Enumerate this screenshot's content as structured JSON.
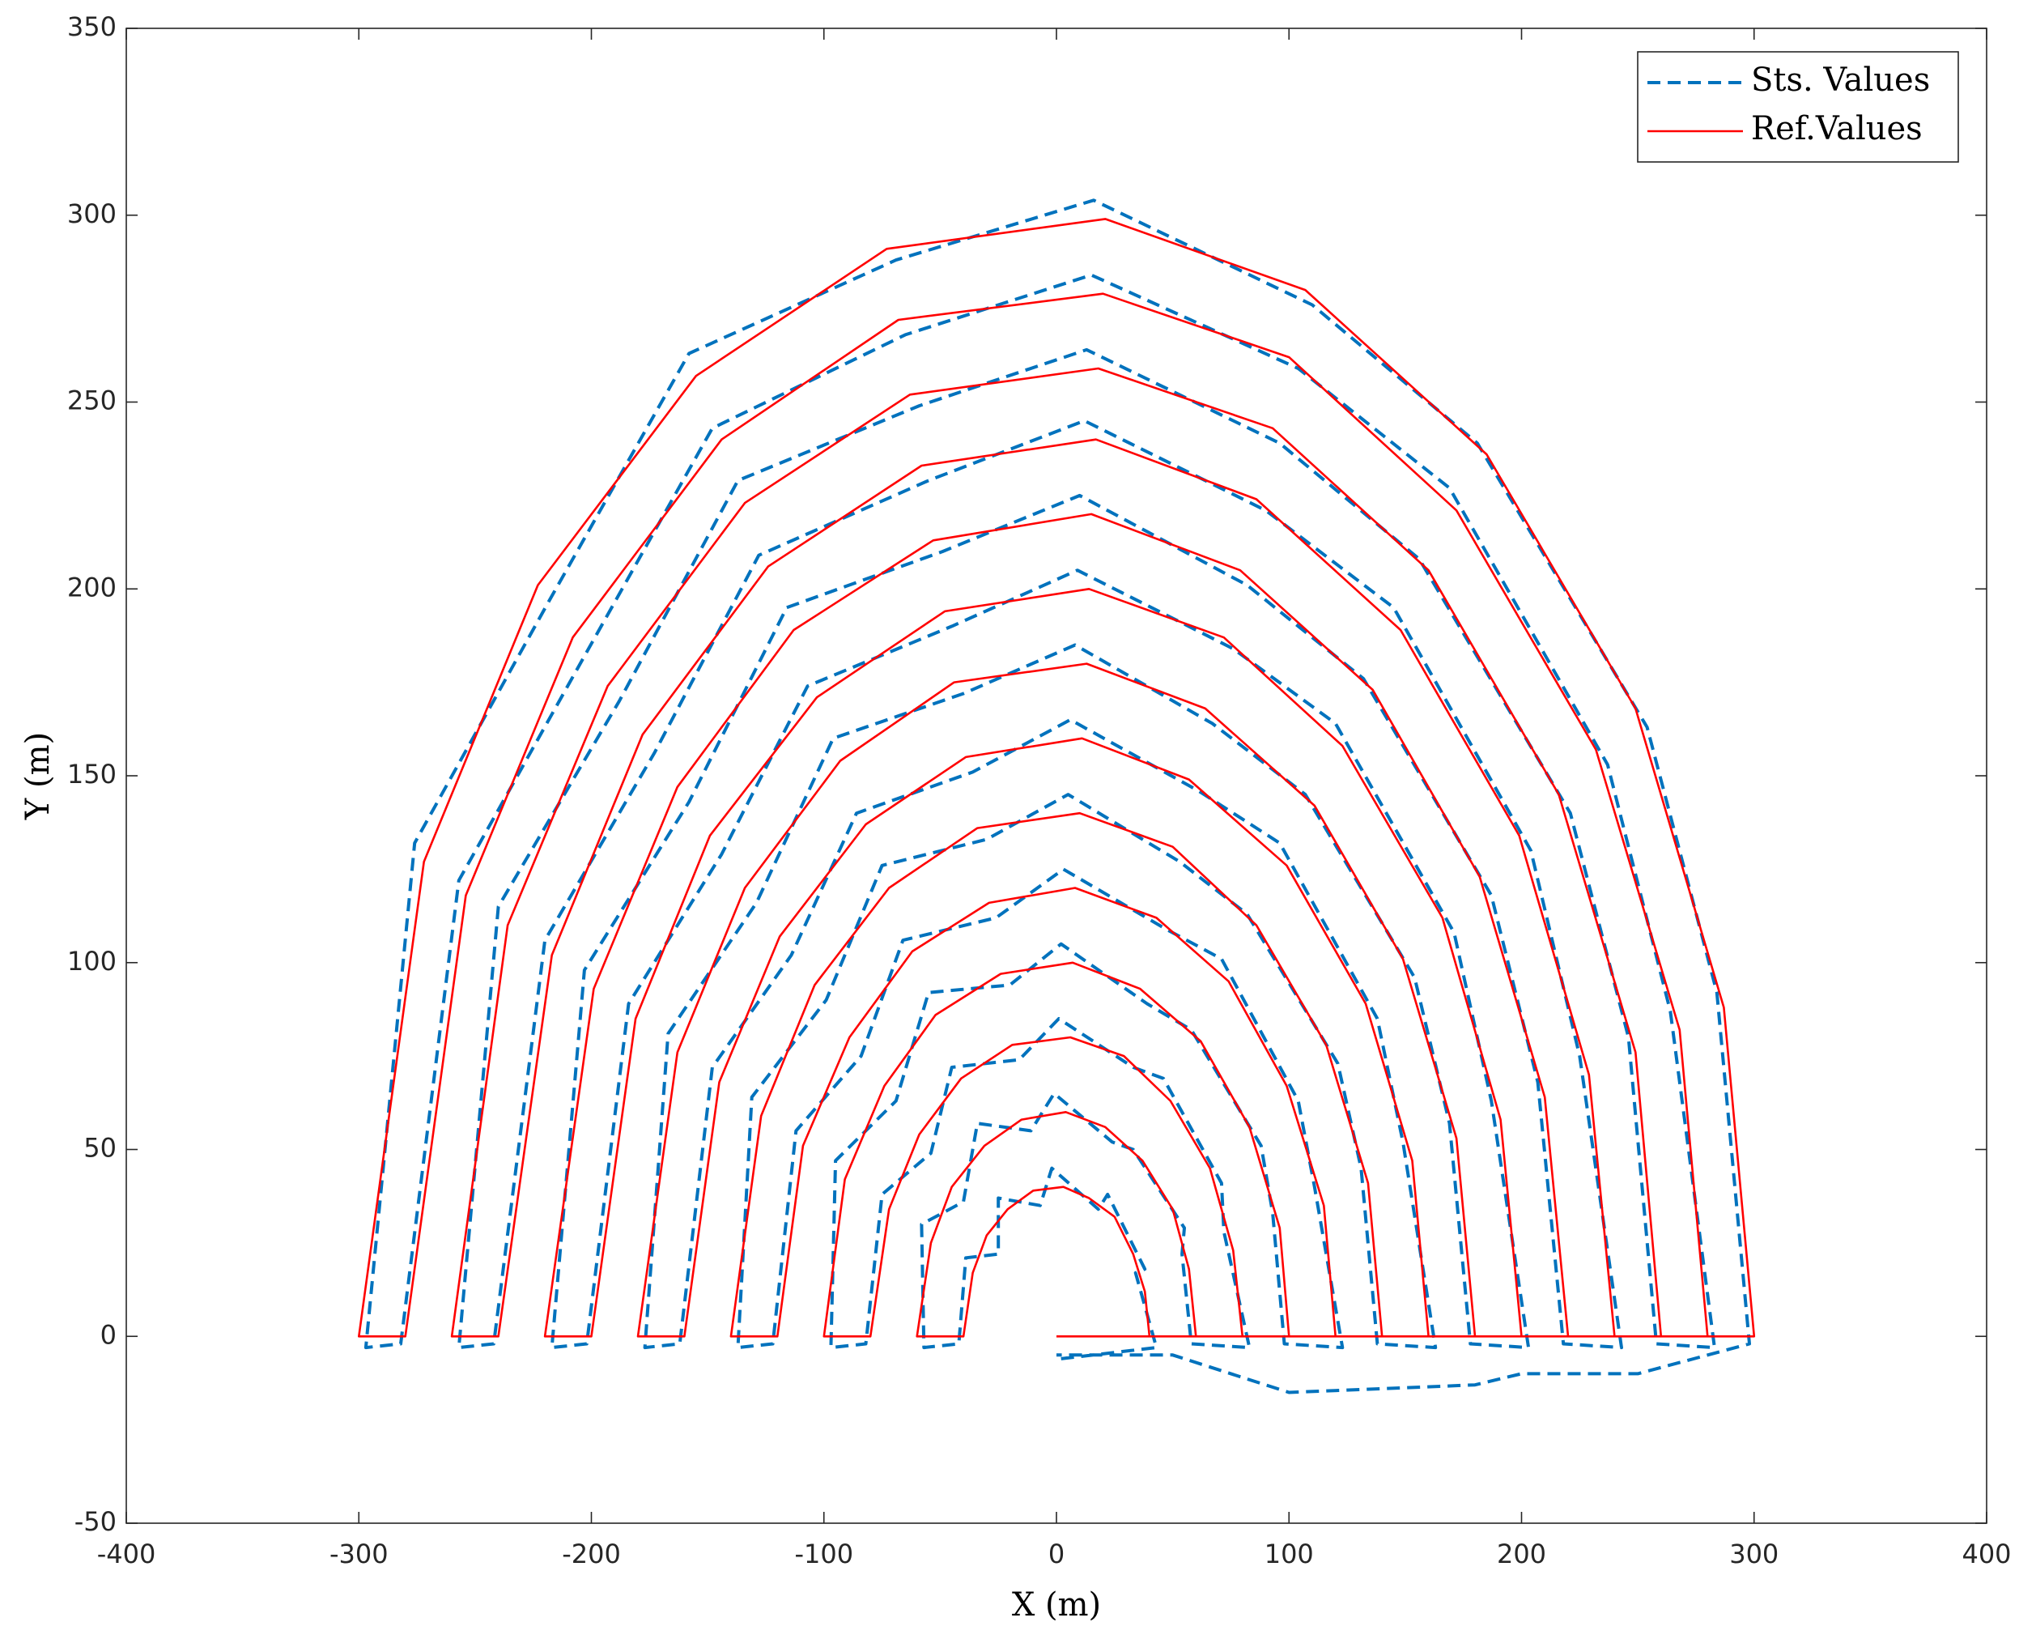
{
  "chart_data": {
    "type": "line",
    "xlabel": "X (m)",
    "ylabel": "Y (m)",
    "xlim": [
      -400,
      400
    ],
    "xticks": [
      -400,
      -300,
      -200,
      -100,
      0,
      100,
      200,
      300,
      400
    ],
    "ylim": [
      -50,
      350
    ],
    "yticks": [
      -50,
      0,
      50,
      100,
      150,
      200,
      250,
      300,
      350
    ],
    "grid": false,
    "legend": "upper-right",
    "series": [
      {
        "name": "Sts. Values",
        "color": "#0072BD",
        "dash": true,
        "x": [
          2,
          43,
          34,
          38,
          22,
          18,
          -2,
          -7,
          -25,
          -25,
          -39,
          -42,
          -57,
          -58,
          -40,
          -34,
          -11,
          -1,
          24,
          33,
          55,
          54,
          58,
          83,
          72,
          71,
          46,
          33,
          1,
          -16,
          -45,
          -54,
          -75,
          -82,
          -97,
          -95,
          -69,
          -55,
          -20,
          2,
          39,
          58,
          88,
          93,
          98,
          123,
          111,
          104,
          71,
          47,
          3,
          -26,
          -66,
          -84,
          -112,
          -122,
          -137,
          -131,
          -99,
          -75,
          -30,
          5,
          53,
          82,
          121,
          131,
          138,
          163,
          149,
          138,
          96,
          61,
          6,
          -36,
          -86,
          -114,
          -148,
          -162,
          -177,
          -167,
          -129,
          -96,
          -40,
          8,
          67,
          107,
          154,
          169,
          178,
          203,
          187,
          171,
          120,
          76,
          9,
          -45,
          -107,
          -144,
          -184,
          -202,
          -217,
          -203,
          -158,
          -116,
          -49,
          10,
          82,
          132,
          187,
          207,
          218,
          243,
          225,
          204,
          145,
          90,
          12,
          -55,
          -128,
          -173,
          -220,
          -242,
          -257,
          -240,
          -188,
          -137,
          -59,
          13,
          96,
          156,
          221,
          246,
          258,
          283,
          264,
          237,
          169,
          104,
          15,
          -65,
          -148,
          -203,
          -257,
          -282,
          -297,
          -276,
          -218,
          -158,
          -69,
          16,
          110,
          181,
          254,
          284,
          298,
          250,
          200,
          180,
          100,
          50,
          0
        ],
        "values": [
          -6,
          -3,
          17,
          18,
          38,
          34,
          45,
          35,
          37,
          22,
          21,
          -2,
          -3,
          30,
          36,
          57,
          55,
          65,
          52,
          50,
          29,
          22,
          -2,
          -3,
          28,
          41,
          69,
          72,
          85,
          74,
          72,
          49,
          38,
          -2,
          -3,
          47,
          63,
          92,
          94,
          105,
          89,
          82,
          51,
          33,
          -2,
          -3,
          40,
          63,
          101,
          109,
          125,
          112,
          106,
          75,
          55,
          -2,
          -3,
          64,
          90,
          126,
          133,
          145,
          127,
          113,
          73,
          45,
          -2,
          -3,
          52,
          85,
          132,
          146,
          165,
          151,
          140,
          102,
          72,
          -2,
          -3,
          81,
          116,
          160,
          172,
          185,
          164,
          145,
          96,
          57,
          -2,
          -3,
          63,
          108,
          164,
          184,
          205,
          190,
          174,
          129,
          89,
          -2,
          -3,
          98,
          143,
          195,
          210,
          225,
          201,
          176,
          118,
          68,
          -2,
          -3,
          75,
          130,
          195,
          221,
          245,
          229,
          209,
          156,
          106,
          -2,
          -3,
          115,
          170,
          229,
          249,
          264,
          239,
          208,
          140,
          80,
          -2,
          -3,
          87,
          153,
          227,
          259,
          284,
          268,
          243,
          182,
          122,
          -2,
          -3,
          132,
          197,
          263,
          288,
          304,
          276,
          239,
          163,
          92,
          -2,
          -10,
          -10,
          -13,
          -15,
          -5,
          -5
        ]
      },
      {
        "name": "Ref.Values",
        "color": "#FF0000",
        "dash": false,
        "x": [
          0,
          40,
          38,
          33,
          25,
          14,
          3,
          -10,
          -21,
          -30,
          -36,
          -40,
          -60,
          -54,
          -45,
          -31,
          -15,
          4,
          21,
          37,
          50,
          57,
          60,
          80,
          76,
          66,
          49,
          29,
          6,
          -19,
          -41,
          -59,
          -72,
          -80,
          -100,
          -91,
          -74,
          -52,
          -24,
          7,
          36,
          62,
          83,
          96,
          100,
          120,
          115,
          99,
          74,
          43,
          8,
          -29,
          -62,
          -89,
          -109,
          -120,
          -140,
          -127,
          -104,
          -72,
          -34,
          10,
          50,
          86,
          116,
          134,
          140,
          160,
          153,
          133,
          99,
          57,
          11,
          -39,
          -82,
          -119,
          -145,
          -160,
          -180,
          -163,
          -134,
          -93,
          -44,
          13,
          64,
          111,
          149,
          172,
          180,
          200,
          191,
          166,
          123,
          72,
          14,
          -48,
          -103,
          -149,
          -181,
          -200,
          -220,
          -199,
          -163,
          -113,
          -53,
          15,
          79,
          136,
          182,
          210,
          220,
          240,
          229,
          199,
          148,
          86,
          17,
          -58,
          -124,
          -178,
          -217,
          -240,
          -260,
          -236,
          -193,
          -134,
          -63,
          18,
          93,
          160,
          216,
          249,
          260,
          280,
          268,
          232,
          172,
          100,
          20,
          -68,
          -144,
          -208,
          -254,
          -280,
          -300,
          -272,
          -223,
          -155,
          -73,
          21,
          107,
          185,
          249,
          287,
          300,
          0
        ],
        "values": [
          0,
          0,
          12,
          22,
          32,
          37,
          40,
          39,
          34,
          27,
          17,
          0,
          0,
          25,
          40,
          51,
          58,
          60,
          56,
          47,
          34,
          18,
          0,
          0,
          23,
          45,
          63,
          75,
          80,
          78,
          69,
          54,
          34,
          0,
          0,
          42,
          67,
          86,
          97,
          100,
          93,
          79,
          56,
          29,
          0,
          0,
          35,
          67,
          95,
          112,
          120,
          116,
          103,
          80,
          51,
          0,
          0,
          59,
          94,
          120,
          136,
          140,
          131,
          110,
          78,
          41,
          0,
          0,
          47,
          89,
          126,
          149,
          160,
          155,
          137,
          107,
          68,
          0,
          0,
          76,
          120,
          154,
          175,
          180,
          168,
          142,
          101,
          53,
          0,
          0,
          58,
          112,
          158,
          187,
          200,
          194,
          171,
          134,
          85,
          0,
          0,
          93,
          147,
          189,
          213,
          220,
          205,
          173,
          123,
          64,
          0,
          0,
          70,
          134,
          189,
          224,
          240,
          233,
          206,
          161,
          102,
          0,
          0,
          110,
          174,
          223,
          252,
          259,
          243,
          205,
          145,
          76,
          0,
          0,
          82,
          157,
          221,
          262,
          279,
          272,
          240,
          187,
          118,
          0,
          0,
          127,
          201,
          257,
          291,
          299,
          280,
          236,
          168,
          88,
          0,
          0
        ]
      }
    ]
  }
}
